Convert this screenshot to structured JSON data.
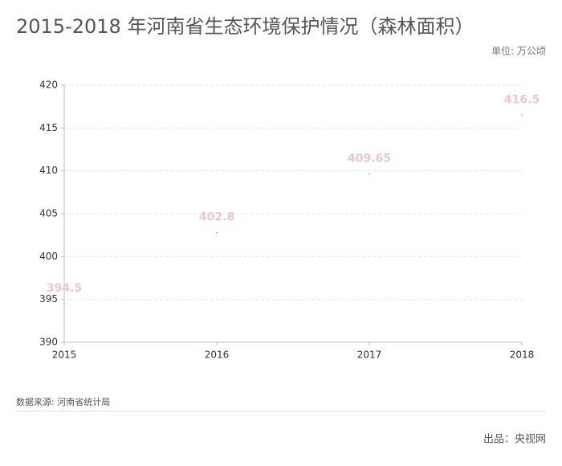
{
  "chart_data": {
    "type": "scatter",
    "title": "2015-2018 年河南省生态环境保护情况（森林面积）",
    "unit": "单位: 万公顷",
    "source": "数据来源: 河南省统计局",
    "credit": "出品：央视网",
    "x": [
      2015,
      2016,
      2017,
      2018
    ],
    "values": [
      394.5,
      402.8,
      409.65,
      416.5
    ],
    "color": "#c9a9b2",
    "label_color": "#ecc7cf",
    "xlim": [
      2015,
      2018
    ],
    "xticks": [
      2015,
      2016,
      2017,
      2018
    ],
    "ylim": [
      390,
      420
    ],
    "yticks": [
      390,
      395,
      400,
      405,
      410,
      415,
      420
    ],
    "grid": true
  }
}
